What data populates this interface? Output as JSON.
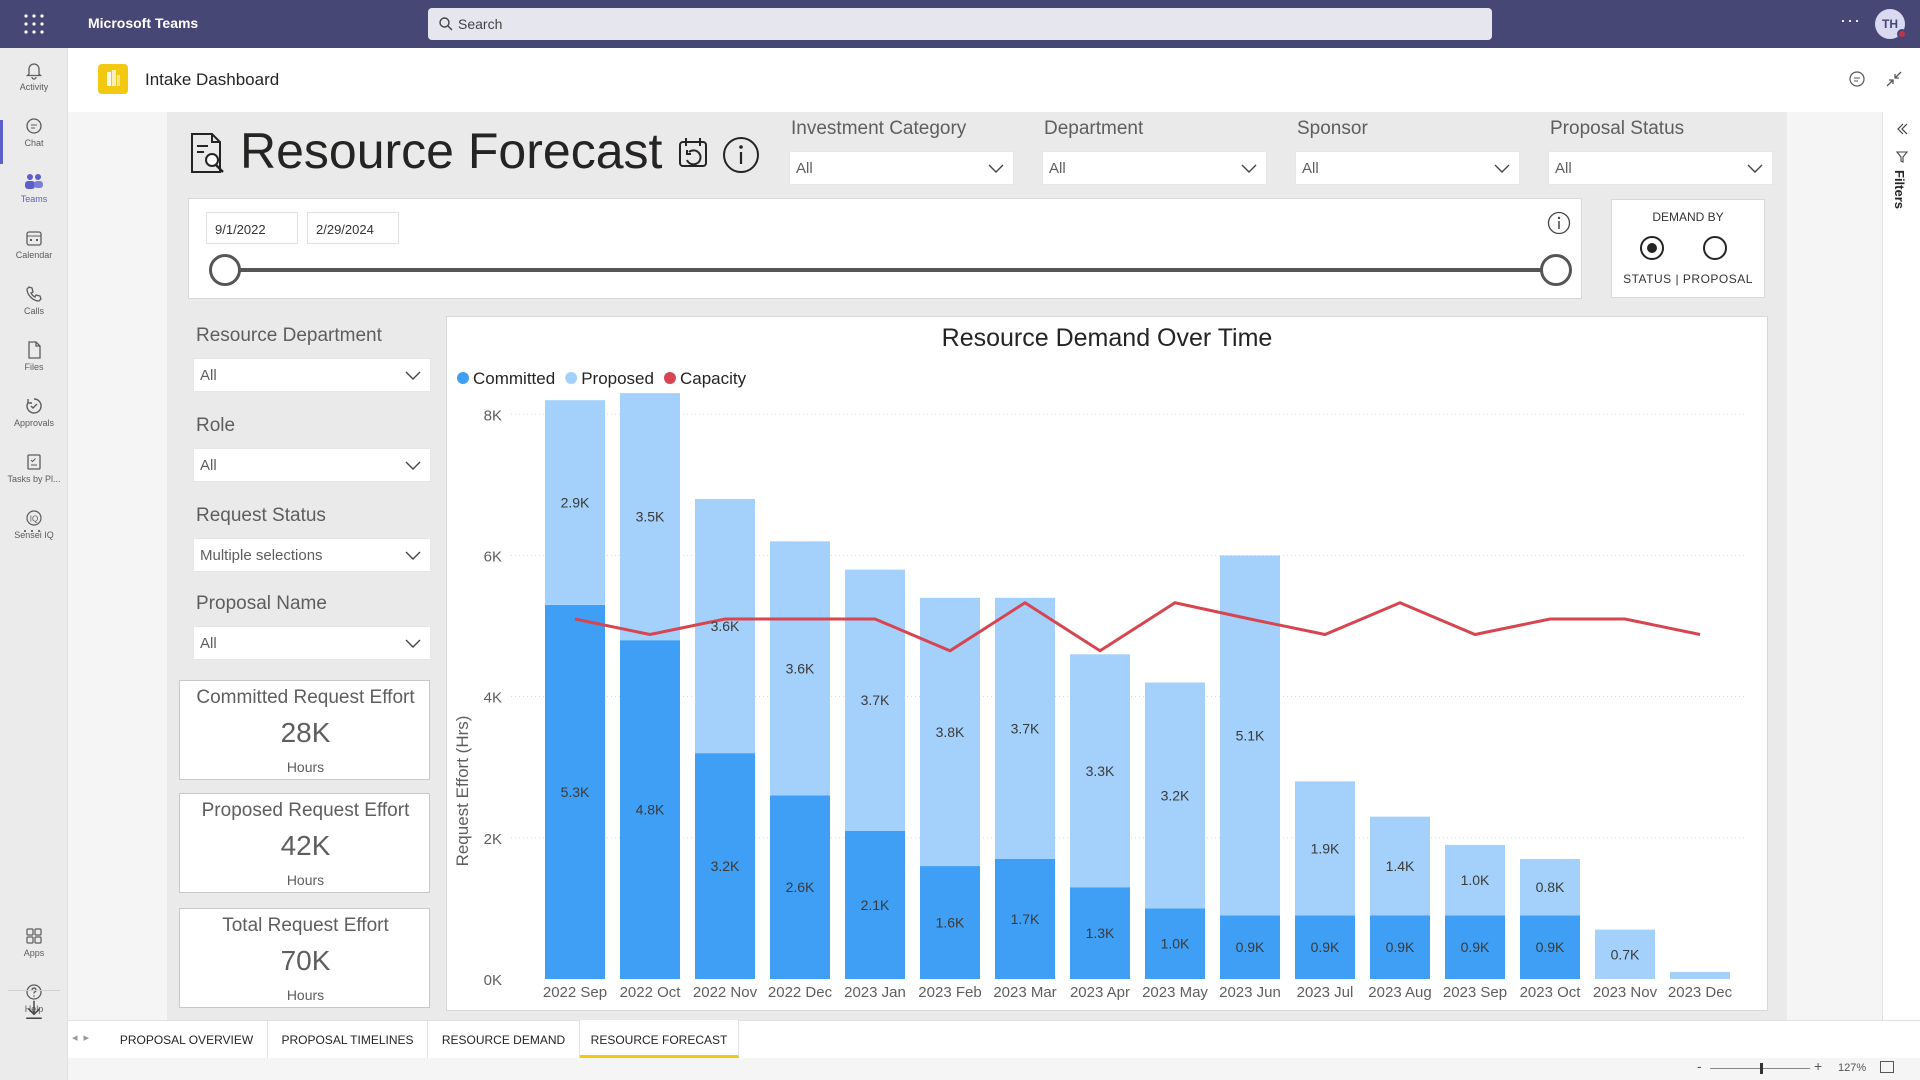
{
  "app": {
    "name": "Microsoft Teams",
    "search_placeholder": "Search",
    "avatar_initials": "TH",
    "more_label": "···"
  },
  "rail": {
    "items": [
      {
        "label": "Activity",
        "icon": "bell-icon"
      },
      {
        "label": "Chat",
        "icon": "chat-icon"
      },
      {
        "label": "Teams",
        "icon": "teams-icon",
        "active": true
      },
      {
        "label": "Calendar",
        "icon": "calendar-icon"
      },
      {
        "label": "Calls",
        "icon": "phone-icon"
      },
      {
        "label": "Files",
        "icon": "file-icon"
      },
      {
        "label": "Approvals",
        "icon": "approvals-icon"
      },
      {
        "label": "Tasks by Pl...",
        "icon": "tasks-icon"
      },
      {
        "label": "Sensei IQ",
        "icon": "iq-icon"
      }
    ],
    "ellipsis": "···",
    "bottom": [
      {
        "label": "Apps",
        "icon": "apps-icon"
      },
      {
        "label": "Help",
        "icon": "help-icon"
      }
    ]
  },
  "header": {
    "title": "Intake Dashboard"
  },
  "report": {
    "title": "Resource Forecast",
    "top_filters": [
      {
        "label": "Investment Category",
        "value": "All"
      },
      {
        "label": "Department",
        "value": "All"
      },
      {
        "label": "Sponsor",
        "value": "All"
      },
      {
        "label": "Proposal Status",
        "value": "All"
      }
    ],
    "date_range": {
      "start": "9/1/2022",
      "end": "2/29/2024"
    },
    "demand_by": {
      "title": "DEMAND BY",
      "options_label": "STATUS  |  PROPOSAL",
      "selected": "STATUS"
    },
    "side_filters": [
      {
        "label": "Resource Department",
        "value": "All"
      },
      {
        "label": "Role",
        "value": "All"
      },
      {
        "label": "Request Status",
        "value": "Multiple selections"
      },
      {
        "label": "Proposal Name",
        "value": "All"
      }
    ],
    "cards": [
      {
        "title": "Committed Request Effort",
        "value": "28K",
        "unit": "Hours"
      },
      {
        "title": "Proposed Request Effort",
        "value": "42K",
        "unit": "Hours"
      },
      {
        "title": "Total Request Effort",
        "value": "70K",
        "unit": "Hours"
      }
    ],
    "filters_pane_label": "Filters"
  },
  "chart_data": {
    "type": "bar",
    "stacked": true,
    "title": "Resource Demand Over Time",
    "ylabel": "Request Effort (Hrs)",
    "xlabel": "",
    "ylim": [
      0,
      8500
    ],
    "yticks": [
      0,
      2000,
      4000,
      6000,
      8000
    ],
    "ytick_labels": [
      "0K",
      "2K",
      "4K",
      "6K",
      "8K"
    ],
    "grid": true,
    "legend": "top-left",
    "categories": [
      "2022 Sep",
      "2022 Oct",
      "2022 Nov",
      "2022 Dec",
      "2023 Jan",
      "2023 Feb",
      "2023 Mar",
      "2023 Apr",
      "2023 May",
      "2023 Jun",
      "2023 Jul",
      "2023 Aug",
      "2023 Sep",
      "2023 Oct",
      "2023 Nov",
      "2023 Dec"
    ],
    "series": [
      {
        "name": "Committed",
        "kind": "bar",
        "color": "#3e9ff5",
        "values": [
          5300,
          4800,
          3200,
          2600,
          2100,
          1600,
          1700,
          1300,
          1000,
          900,
          900,
          900,
          900,
          900,
          0,
          0
        ],
        "labels": [
          "5.3K",
          "4.8K",
          "3.2K",
          "2.6K",
          "2.1K",
          "1.6K",
          "1.7K",
          "1.3K",
          "1.0K",
          "0.9K",
          "0.9K",
          "0.9K",
          "0.9K",
          "0.9K",
          "",
          ""
        ]
      },
      {
        "name": "Proposed",
        "kind": "bar",
        "color": "#a3d1fb",
        "values": [
          2900,
          3500,
          3600,
          3600,
          3700,
          3800,
          3700,
          3300,
          3200,
          5100,
          1900,
          1400,
          1000,
          800,
          700,
          100
        ],
        "labels": [
          "2.9K",
          "3.5K",
          "3.6K",
          "3.6K",
          "3.7K",
          "3.8K",
          "3.7K",
          "3.3K",
          "3.2K",
          "5.1K",
          "1.9K",
          "1.4K",
          "1.0K",
          "0.8K",
          "0.7K",
          ""
        ]
      },
      {
        "name": "Capacity",
        "kind": "line",
        "color": "#d64550",
        "values": [
          5100,
          4880,
          5100,
          5100,
          5100,
          4650,
          5330,
          4650,
          5330,
          5100,
          4880,
          5330,
          4880,
          5100,
          5100,
          4880
        ]
      }
    ]
  },
  "tabs": {
    "items": [
      "PROPOSAL OVERVIEW",
      "PROPOSAL TIMELINES",
      "RESOURCE DEMAND",
      "RESOURCE FORECAST"
    ],
    "active": 3
  },
  "status": {
    "zoom": "127%",
    "zoom_minus": "-",
    "zoom_plus": "+"
  }
}
